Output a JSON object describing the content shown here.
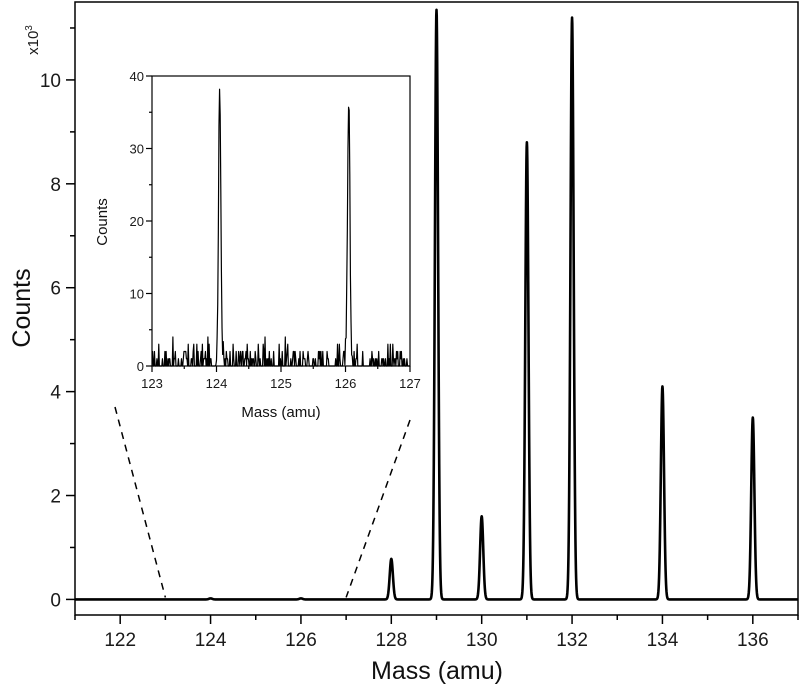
{
  "chart_data": [
    {
      "type": "line",
      "xlabel": "Mass (amu)",
      "ylabel": "Counts",
      "y_multiplier_label": "x10",
      "y_multiplier_exponent": "3",
      "xlim": [
        121,
        137
      ],
      "ylim": [
        -0.3,
        11.5
      ],
      "x_ticks": [
        122,
        124,
        126,
        128,
        130,
        132,
        134,
        136
      ],
      "y_ticks": [
        0,
        2,
        4,
        6,
        8,
        10
      ],
      "grid": false,
      "line_color": "#000000",
      "peaks": [
        {
          "x": 124,
          "y": 0.02
        },
        {
          "x": 126,
          "y": 0.02
        },
        {
          "x": 128,
          "y": 0.78
        },
        {
          "x": 129,
          "y": 11.35
        },
        {
          "x": 130,
          "y": 1.6
        },
        {
          "x": 131,
          "y": 8.8
        },
        {
          "x": 132,
          "y": 11.2
        },
        {
          "x": 134,
          "y": 4.1
        },
        {
          "x": 136,
          "y": 3.5
        }
      ],
      "zoom_range": [
        123,
        127
      ]
    },
    {
      "type": "line",
      "xlabel": "Mass (amu)",
      "ylabel": "Counts",
      "xlim": [
        123,
        127
      ],
      "ylim": [
        0,
        40
      ],
      "x_ticks": [
        123,
        124,
        125,
        126,
        127
      ],
      "y_ticks": [
        0,
        10,
        20,
        30,
        40
      ],
      "grid": false,
      "line_color": "#000000",
      "noise_level": 4,
      "peaks": [
        {
          "x": 124.05,
          "y": 37.5
        },
        {
          "x": 126.05,
          "y": 36
        }
      ]
    }
  ]
}
